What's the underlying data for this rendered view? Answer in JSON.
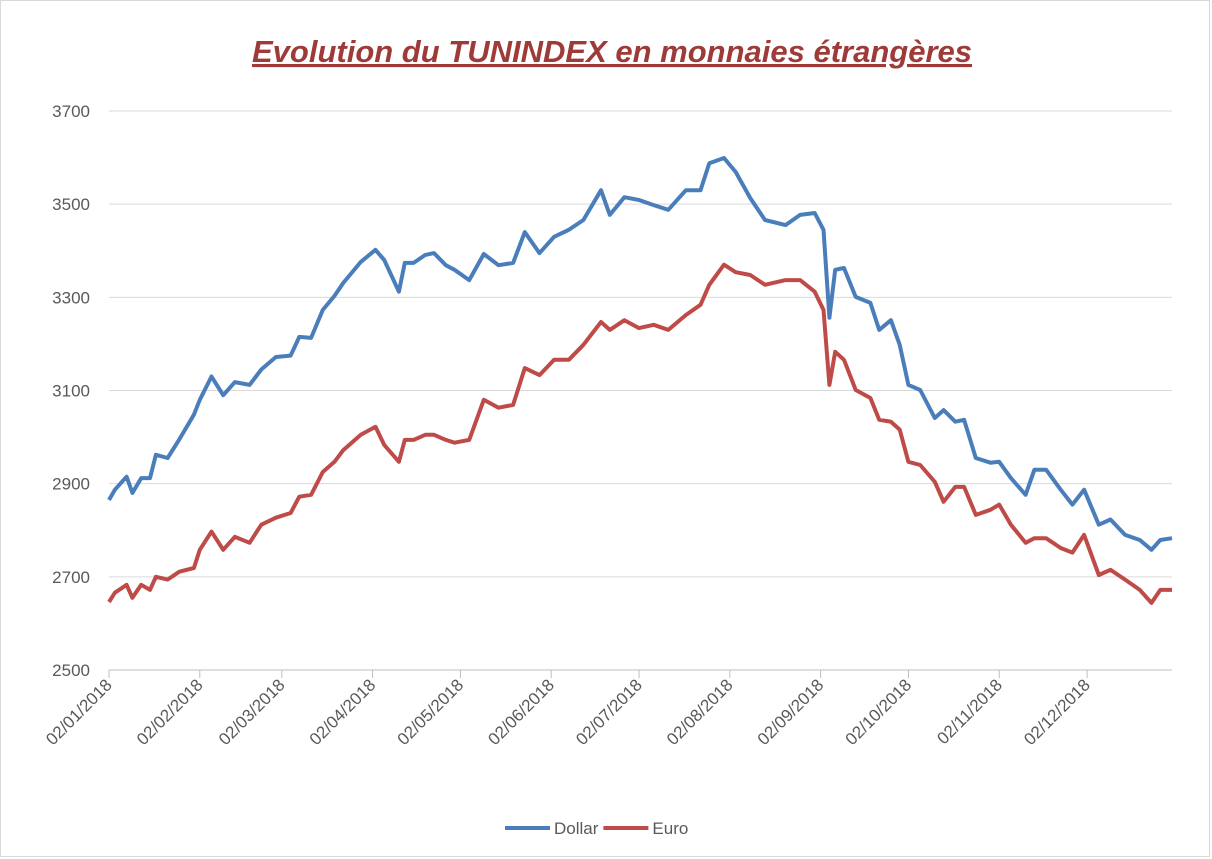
{
  "chart_data": {
    "type": "line",
    "title": "Evolution du TUNINDEX en monnaies étrangères",
    "x": [
      "02/01/2018",
      "04/01/2018",
      "08/01/2018",
      "10/01/2018",
      "13/01/2018",
      "16/01/2018",
      "18/01/2018",
      "22/01/2018",
      "26/01/2018",
      "31/01/2018",
      "02/02/2018",
      "06/02/2018",
      "10/02/2018",
      "14/02/2018",
      "19/02/2018",
      "23/02/2018",
      "28/02/2018",
      "05/03/2018",
      "08/03/2018",
      "12/03/2018",
      "16/03/2018",
      "20/03/2018",
      "23/03/2018",
      "29/03/2018",
      "03/04/2018",
      "06/04/2018",
      "11/04/2018",
      "13/04/2018",
      "16/04/2018",
      "20/04/2018",
      "23/04/2018",
      "27/04/2018",
      "30/04/2018",
      "05/05/2018",
      "10/05/2018",
      "15/05/2018",
      "20/05/2018",
      "24/05/2018",
      "29/05/2018",
      "03/06/2018",
      "08/06/2018",
      "13/06/2018",
      "19/06/2018",
      "22/06/2018",
      "27/06/2018",
      "02/07/2018",
      "07/07/2018",
      "12/07/2018",
      "18/07/2018",
      "23/07/2018",
      "26/07/2018",
      "31/07/2018",
      "04/08/2018",
      "09/08/2018",
      "14/08/2018",
      "21/08/2018",
      "26/08/2018",
      "31/08/2018",
      "03/09/2018",
      "05/09/2018",
      "07/09/2018",
      "10/09/2018",
      "14/09/2018",
      "19/09/2018",
      "22/09/2018",
      "26/09/2018",
      "29/09/2018",
      "02/10/2018",
      "06/10/2018",
      "11/10/2018",
      "14/10/2018",
      "18/10/2018",
      "21/10/2018",
      "25/10/2018",
      "30/10/2018",
      "02/11/2018",
      "06/11/2018",
      "11/11/2018",
      "14/11/2018",
      "18/11/2018",
      "23/11/2018",
      "27/11/2018",
      "01/12/2018",
      "06/12/2018",
      "10/12/2018",
      "15/12/2018",
      "20/12/2018",
      "24/12/2018",
      "27/12/2018",
      "31/12/2018"
    ],
    "series": [
      {
        "name": "Dollar",
        "color": "#4a7ebb",
        "values": [
          2865,
          2887,
          2915,
          2880,
          2912,
          2912,
          2962,
          2955,
          2995,
          3048,
          3080,
          3130,
          3090,
          3118,
          3112,
          3145,
          3172,
          3175,
          3215,
          3213,
          3273,
          3303,
          3331,
          3376,
          3402,
          3380,
          3312,
          3374,
          3374,
          3391,
          3395,
          3369,
          3359,
          3337,
          3393,
          3369,
          3374,
          3440,
          3395,
          3430,
          3445,
          3466,
          3530,
          3477,
          3515,
          3509,
          3498,
          3488,
          3530,
          3530,
          3588,
          3599,
          3569,
          3513,
          3466,
          3455,
          3477,
          3481,
          3445,
          3256,
          3359,
          3363,
          3301,
          3288,
          3230,
          3251,
          3198,
          3112,
          3101,
          3041,
          3058,
          3033,
          3037,
          2955,
          2945,
          2947,
          2912,
          2876,
          2930,
          2930,
          2887,
          2855,
          2887,
          2812,
          2823,
          2790,
          2779,
          2758,
          2779,
          2783
        ]
      },
      {
        "name": "Euro",
        "color": "#be4b48",
        "values": [
          2646,
          2666,
          2683,
          2655,
          2683,
          2672,
          2700,
          2694,
          2711,
          2719,
          2758,
          2797,
          2758,
          2786,
          2773,
          2812,
          2827,
          2837,
          2872,
          2876,
          2925,
          2947,
          2972,
          3005,
          3022,
          2983,
          2947,
          2994,
          2994,
          3005,
          3005,
          2994,
          2988,
          2994,
          3080,
          3063,
          3069,
          3148,
          3133,
          3166,
          3166,
          3198,
          3247,
          3230,
          3251,
          3234,
          3241,
          3230,
          3262,
          3284,
          3327,
          3370,
          3354,
          3348,
          3327,
          3337,
          3337,
          3312,
          3273,
          3112,
          3183,
          3166,
          3101,
          3084,
          3037,
          3033,
          3016,
          2947,
          2940,
          2904,
          2861,
          2893,
          2893,
          2833,
          2844,
          2855,
          2812,
          2773,
          2783,
          2783,
          2762,
          2752,
          2790,
          2704,
          2715,
          2694,
          2672,
          2644,
          2672,
          2672
        ]
      }
    ],
    "xlim": [
      "02/01/2018",
      "31/12/2018"
    ],
    "xticks": [
      "02/01/2018",
      "02/02/2018",
      "02/03/2018",
      "02/04/2018",
      "02/05/2018",
      "02/06/2018",
      "02/07/2018",
      "02/08/2018",
      "02/09/2018",
      "02/10/2018",
      "02/11/2018",
      "02/12/2018"
    ],
    "ylim": [
      2500,
      3700
    ],
    "yticks": [
      2500,
      2700,
      2900,
      3100,
      3300,
      3500,
      3700
    ],
    "grid": true,
    "legend": "bottom"
  }
}
